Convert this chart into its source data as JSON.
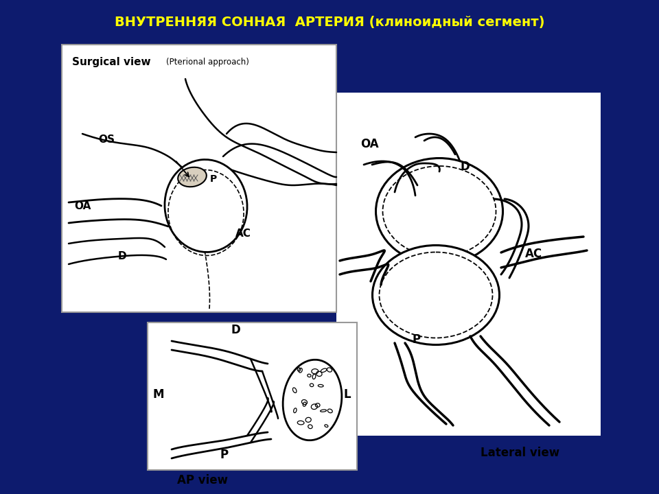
{
  "title": "ВНУТРЕННЯЯ СОННАЯ  АРТЕРИЯ (клиноидный сегмент)",
  "title_color": "#FFFF00",
  "title_fontsize": 14,
  "bg_color": "#0d1b6e",
  "fig_width": 9.6,
  "fig_height": 7.2,
  "box1_title": "Surgical view",
  "box1_subtitle": "(Pterional approach)",
  "box2_title": "AP view",
  "lateral_label": "Lateral view"
}
